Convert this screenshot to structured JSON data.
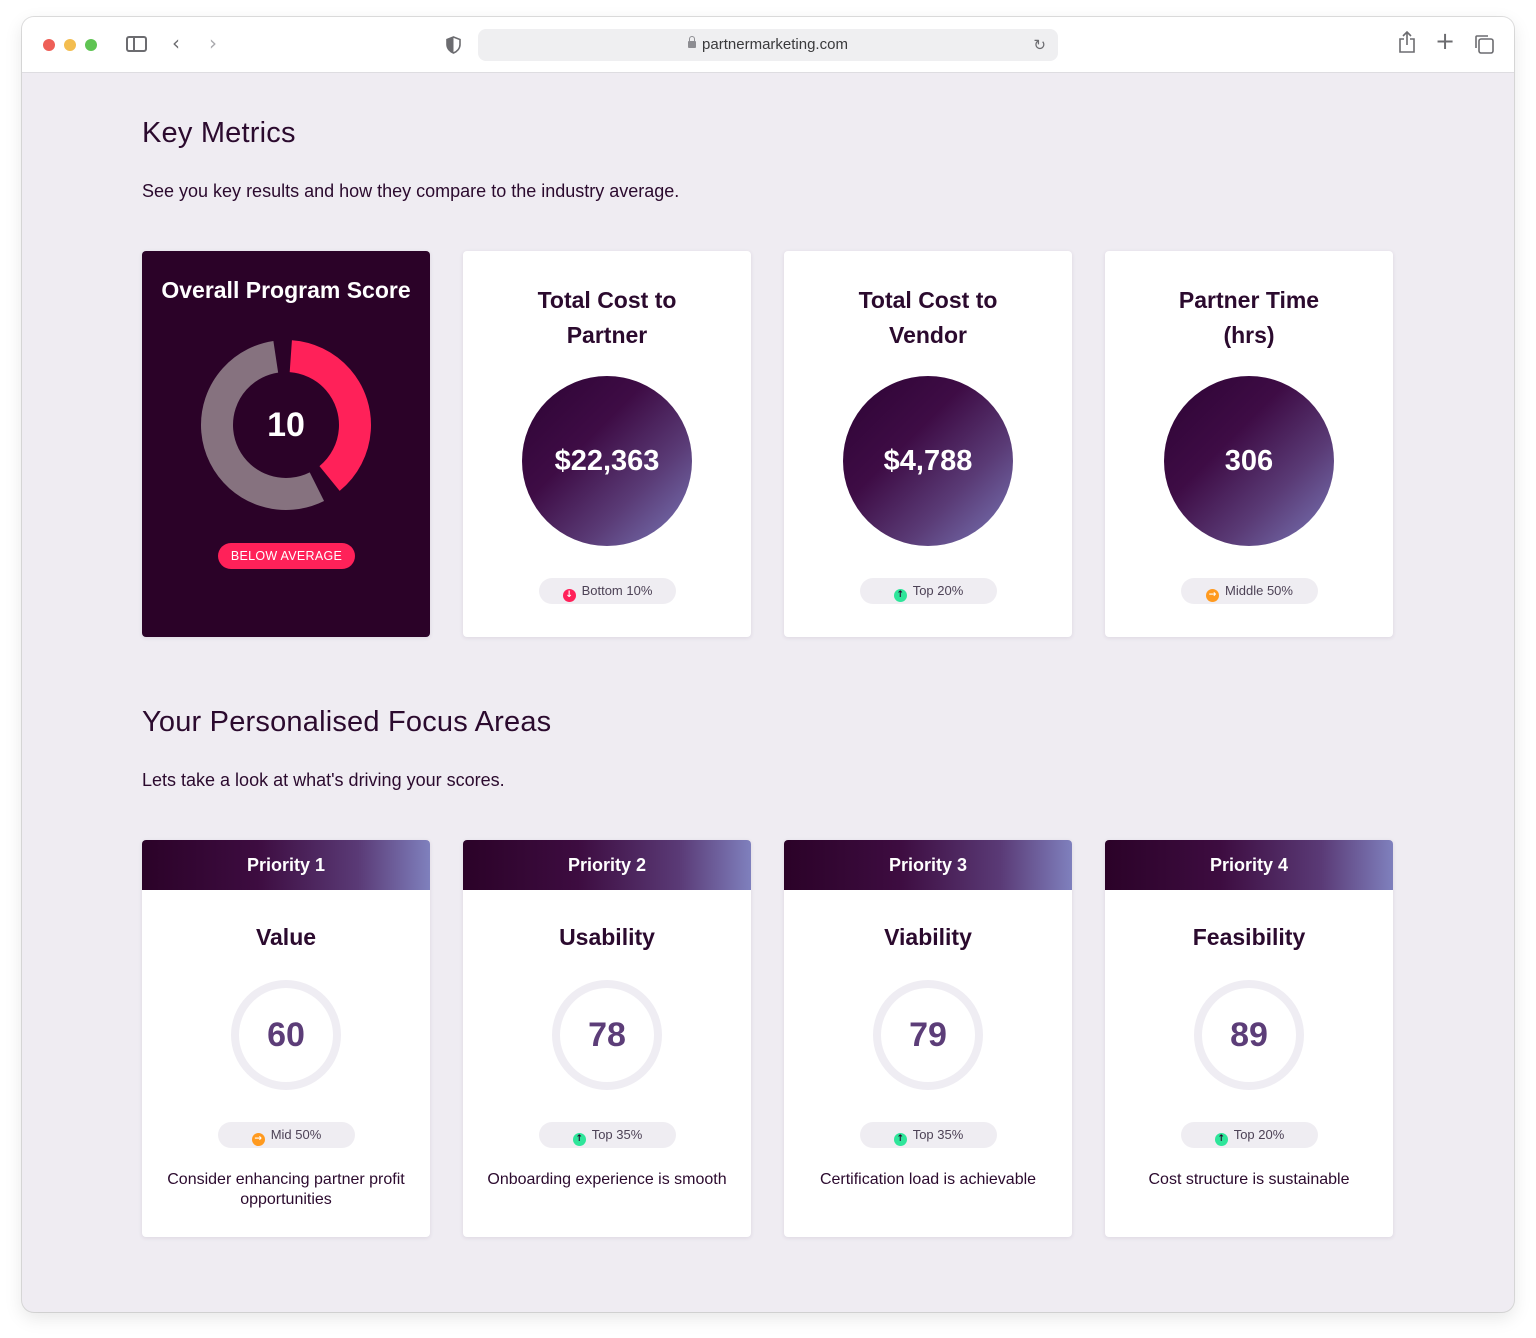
{
  "browser": {
    "url": "partnermarketing.com"
  },
  "key_metrics": {
    "title": "Key Metrics",
    "subtitle": "See you key results and how they compare to the industry average.",
    "overall": {
      "title": "Overall Program Score",
      "score": "10",
      "score_fraction": 0.38,
      "badge": "BELOW AVERAGE",
      "colors": {
        "arc": "#ff2159",
        "track": "#86727f",
        "background": "#2b0228"
      }
    },
    "cards": [
      {
        "title_line1": "Total Cost to",
        "title_line2": "Partner",
        "value": "$22,363",
        "rank": "Bottom 10%",
        "trend": "down",
        "trend_icon": "arrow-down-icon"
      },
      {
        "title_line1": "Total Cost to",
        "title_line2": "Vendor",
        "value": "$4,788",
        "rank": "Top 20%",
        "trend": "up",
        "trend_icon": "arrow-up-icon"
      },
      {
        "title_line1": "Partner Time",
        "title_line2": "(hrs)",
        "value": "306",
        "rank": "Middle 50%",
        "trend": "side",
        "trend_icon": "arrow-right-icon"
      }
    ]
  },
  "focus_areas": {
    "title": "Your Personalised Focus Areas",
    "subtitle": "Lets take a look at what's driving your scores.",
    "cards": [
      {
        "priority": "Priority 1",
        "name": "Value",
        "score": "60",
        "rank": "Mid 50%",
        "trend": "side",
        "description": "Consider enhancing partner profit opportunities"
      },
      {
        "priority": "Priority 2",
        "name": "Usability",
        "score": "78",
        "rank": "Top 35%",
        "trend": "up",
        "description": "Onboarding experience is smooth"
      },
      {
        "priority": "Priority 3",
        "name": "Viability",
        "score": "79",
        "rank": "Top 35%",
        "trend": "up",
        "description": "Certification load is achievable"
      },
      {
        "priority": "Priority 4",
        "name": "Feasibility",
        "score": "89",
        "rank": "Top 20%",
        "trend": "up",
        "description": "Cost structure is sustainable"
      }
    ]
  },
  "colors": {
    "brand_dark": "#2b0228",
    "accent_red": "#ff2159",
    "accent_green": "#2ee59a",
    "accent_orange": "#ff9a1f",
    "page_bg": "#efecf2"
  }
}
